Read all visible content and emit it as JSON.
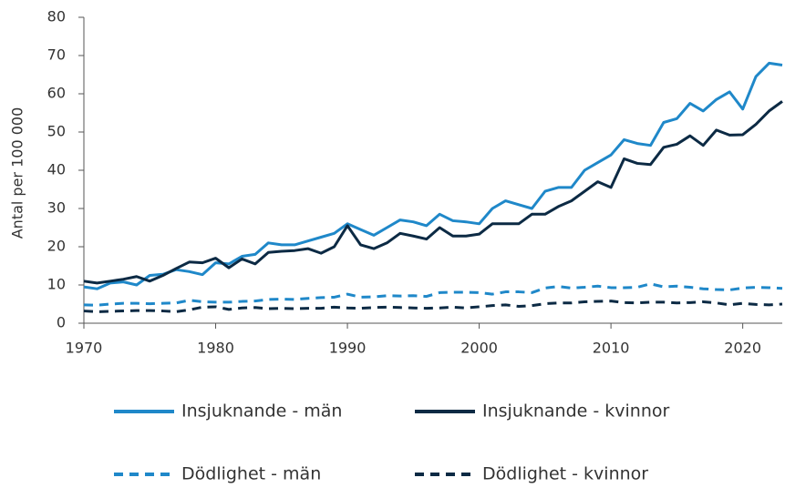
{
  "chart_data": {
    "type": "line",
    "y_label": "Antal per 100 000",
    "x": [
      1970,
      1971,
      1972,
      1973,
      1974,
      1975,
      1976,
      1977,
      1978,
      1979,
      1980,
      1981,
      1982,
      1983,
      1984,
      1985,
      1986,
      1987,
      1988,
      1989,
      1990,
      1991,
      1992,
      1993,
      1994,
      1995,
      1996,
      1997,
      1998,
      1999,
      2000,
      2001,
      2002,
      2003,
      2004,
      2005,
      2006,
      2007,
      2008,
      2009,
      2010,
      2011,
      2012,
      2013,
      2014,
      2015,
      2016,
      2017,
      2018,
      2019,
      2020,
      2021,
      2022,
      2023
    ],
    "series": [
      {
        "name": "Insjuknande - män",
        "color": "#1f88c9",
        "dashed": false,
        "values": [
          9.5,
          9,
          10.5,
          10.8,
          10,
          12.5,
          12.8,
          14,
          13.5,
          12.7,
          15.8,
          15.5,
          17.5,
          18,
          21,
          20.5,
          20.5,
          21.5,
          22.5,
          23.5,
          26,
          24.5,
          23,
          25,
          27,
          26.5,
          25.5,
          28.5,
          26.8,
          26.5,
          26,
          30,
          32,
          31,
          30,
          34.5,
          35.5,
          35.5,
          40,
          42,
          44,
          48,
          47,
          46.5,
          52.5,
          53.5,
          57.5,
          55.5,
          58.5,
          60.5,
          56,
          64.5,
          68,
          67.5
        ]
      },
      {
        "name": "Insjuknande - kvinnor",
        "color": "#0c2a44",
        "dashed": false,
        "values": [
          11,
          10.5,
          11,
          11.5,
          12.2,
          11,
          12.5,
          14.3,
          16,
          15.8,
          17,
          14.5,
          16.8,
          15.5,
          18.5,
          18.8,
          19,
          19.5,
          18.3,
          20,
          25.5,
          20.5,
          19.5,
          21,
          23.5,
          22.8,
          22,
          25,
          22.8,
          22.8,
          23.3,
          26,
          26,
          26,
          28.5,
          28.5,
          30.5,
          32,
          34.5,
          37,
          35.5,
          43,
          41.8,
          41.5,
          46,
          46.8,
          49,
          46.5,
          50.5,
          49.2,
          49.3,
          52,
          55.5,
          58
        ]
      },
      {
        "name": "Dödlighet - män",
        "color": "#1f88c9",
        "dashed": true,
        "values": [
          4.8,
          4.7,
          5,
          5.2,
          5.2,
          5.1,
          5.2,
          5.3,
          6,
          5.6,
          5.5,
          5.5,
          5.7,
          5.8,
          6.2,
          6.3,
          6.2,
          6.5,
          6.7,
          6.8,
          7.6,
          6.8,
          6.9,
          7.2,
          7.1,
          7.2,
          7,
          8,
          8.1,
          8.1,
          8,
          7.6,
          8.2,
          8.2,
          8,
          9.2,
          9.6,
          9.2,
          9.4,
          9.7,
          9.3,
          9.3,
          9.4,
          10.3,
          9.5,
          9.7,
          9.4,
          9,
          8.8,
          8.7,
          9.2,
          9.4,
          9.3,
          9.1
        ]
      },
      {
        "name": "Dödlighet - kvinnor",
        "color": "#0c2a44",
        "dashed": true,
        "values": [
          3.2,
          3,
          3.1,
          3.2,
          3.3,
          3.3,
          3.2,
          3,
          3.5,
          4.2,
          4.3,
          3.6,
          4,
          4.1,
          3.8,
          3.9,
          3.8,
          3.9,
          3.9,
          4.2,
          4,
          3.9,
          4.1,
          4.2,
          4.1,
          4,
          3.9,
          4,
          4.2,
          4,
          4.3,
          4.6,
          4.8,
          4.4,
          4.6,
          5.1,
          5.3,
          5.3,
          5.6,
          5.7,
          5.8,
          5.4,
          5.3,
          5.5,
          5.5,
          5.3,
          5.4,
          5.6,
          5.3,
          4.8,
          5.2,
          4.9,
          4.8,
          5
        ]
      }
    ],
    "xlim": [
      1970,
      2023
    ],
    "xticks": [
      1970,
      1980,
      1990,
      2000,
      2010,
      2020
    ],
    "ylim": [
      0,
      80
    ],
    "yticks": [
      0,
      10,
      20,
      30,
      40,
      50,
      60,
      70,
      80
    ]
  }
}
